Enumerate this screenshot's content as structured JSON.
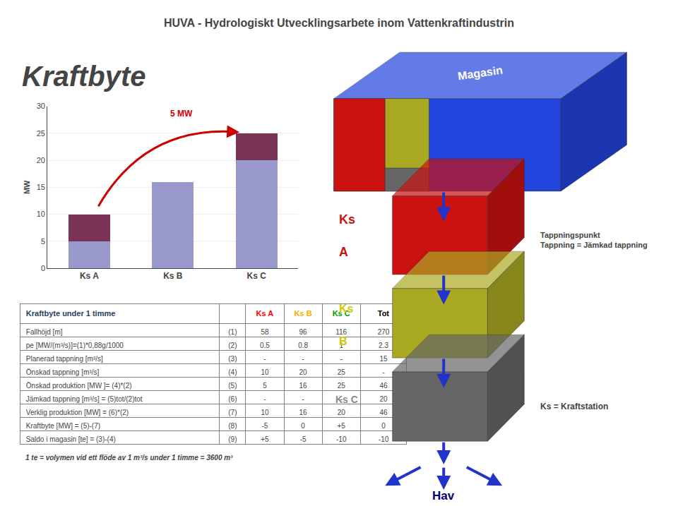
{
  "chart_data": [
    {
      "type": "bar",
      "title": "HUVA - Hydrologiskt Utvecklingsarbete inom Vattenkraftindustrin",
      "subtitle": "Kraftbyte",
      "stacked": true,
      "categories": [
        "Ks A",
        "Ks B",
        "Ks C"
      ],
      "series": [
        {
          "color": "#9999cc",
          "values": [
            5,
            16,
            20
          ]
        },
        {
          "color": "#7a3355",
          "values": [
            5,
            0,
            5
          ]
        }
      ],
      "ylabel": "MW",
      "ylim": [
        0,
        30
      ],
      "yticks": [
        0,
        5,
        10,
        15,
        20,
        25,
        30
      ],
      "grid": true,
      "annotations": [
        {
          "text": "5 MW",
          "color": "#cc0000"
        }
      ]
    },
    {
      "type": "table",
      "title": "Kraftbyte under 1 timme",
      "columns": [
        "Ks A",
        "Ks B",
        "Ks C",
        "Tot"
      ],
      "colors": [
        "#ff0000",
        "#ffaa00",
        "#009900",
        "#000000"
      ],
      "rows": [
        [
          "Fallhöjd [m]",
          "(1)",
          "58",
          "96",
          "116",
          "270"
        ],
        [
          "pe [MW/(m³/s)]=(1)*0,88g/1000",
          "(2)",
          "0.5",
          "0.8",
          "1",
          "2.3"
        ],
        [
          "Planerad tappning [m³/s]",
          "(3)",
          "-",
          "-",
          "-",
          "15"
        ],
        [
          "Önskad tappning [m³/s]",
          "(4)",
          "10",
          "20",
          "25",
          "-"
        ],
        [
          "Önskad produktion [MW ]= (4)*(2)",
          "(5)",
          "5",
          "16",
          "25",
          "46"
        ],
        [
          "Jämkad tappning [m³/s] = (5)tot/(2)tot",
          "(6)",
          "-",
          "-",
          "-",
          "20"
        ],
        [
          "Verklig produktion [MW] = (6)*(2)",
          "(7)",
          "10",
          "16",
          "20",
          "46"
        ],
        [
          "Kraftbyte [MW] = (5)-(7)",
          "(8)",
          "-5",
          "0",
          "+5",
          "0"
        ],
        [
          "Saldo i magasin [te] = (3)-(4)",
          "(9)",
          "+5",
          "-5",
          "-10",
          "-10"
        ]
      ],
      "note": "1 te = volymen vid ett flöde av 1 m³/s under 1 timme = 3600 m³"
    },
    {
      "type": "diagram",
      "colors": [
        "#2244dd",
        "#cc1111",
        "#aaaa22",
        "#666666"
      ],
      "color": "#2233cc",
      "labels": [
        {
          "text": "Magasin",
          "color": "#ffffff"
        },
        {
          "text": "Ks",
          "color": "#cc1111"
        },
        {
          "text": "A",
          "color": "#cc1111"
        },
        {
          "text": "Ks",
          "color": "#cccc00"
        },
        {
          "text": "B",
          "color": "#cccc00"
        },
        {
          "text": "Ks C",
          "color": "#888888"
        },
        {
          "text": "Tappningspunkt\nTappning = Jämkad tappning"
        },
        {
          "text": "Ks = Kraftstation"
        },
        {
          "text": "Hav",
          "color": "#000077"
        }
      ]
    }
  ]
}
